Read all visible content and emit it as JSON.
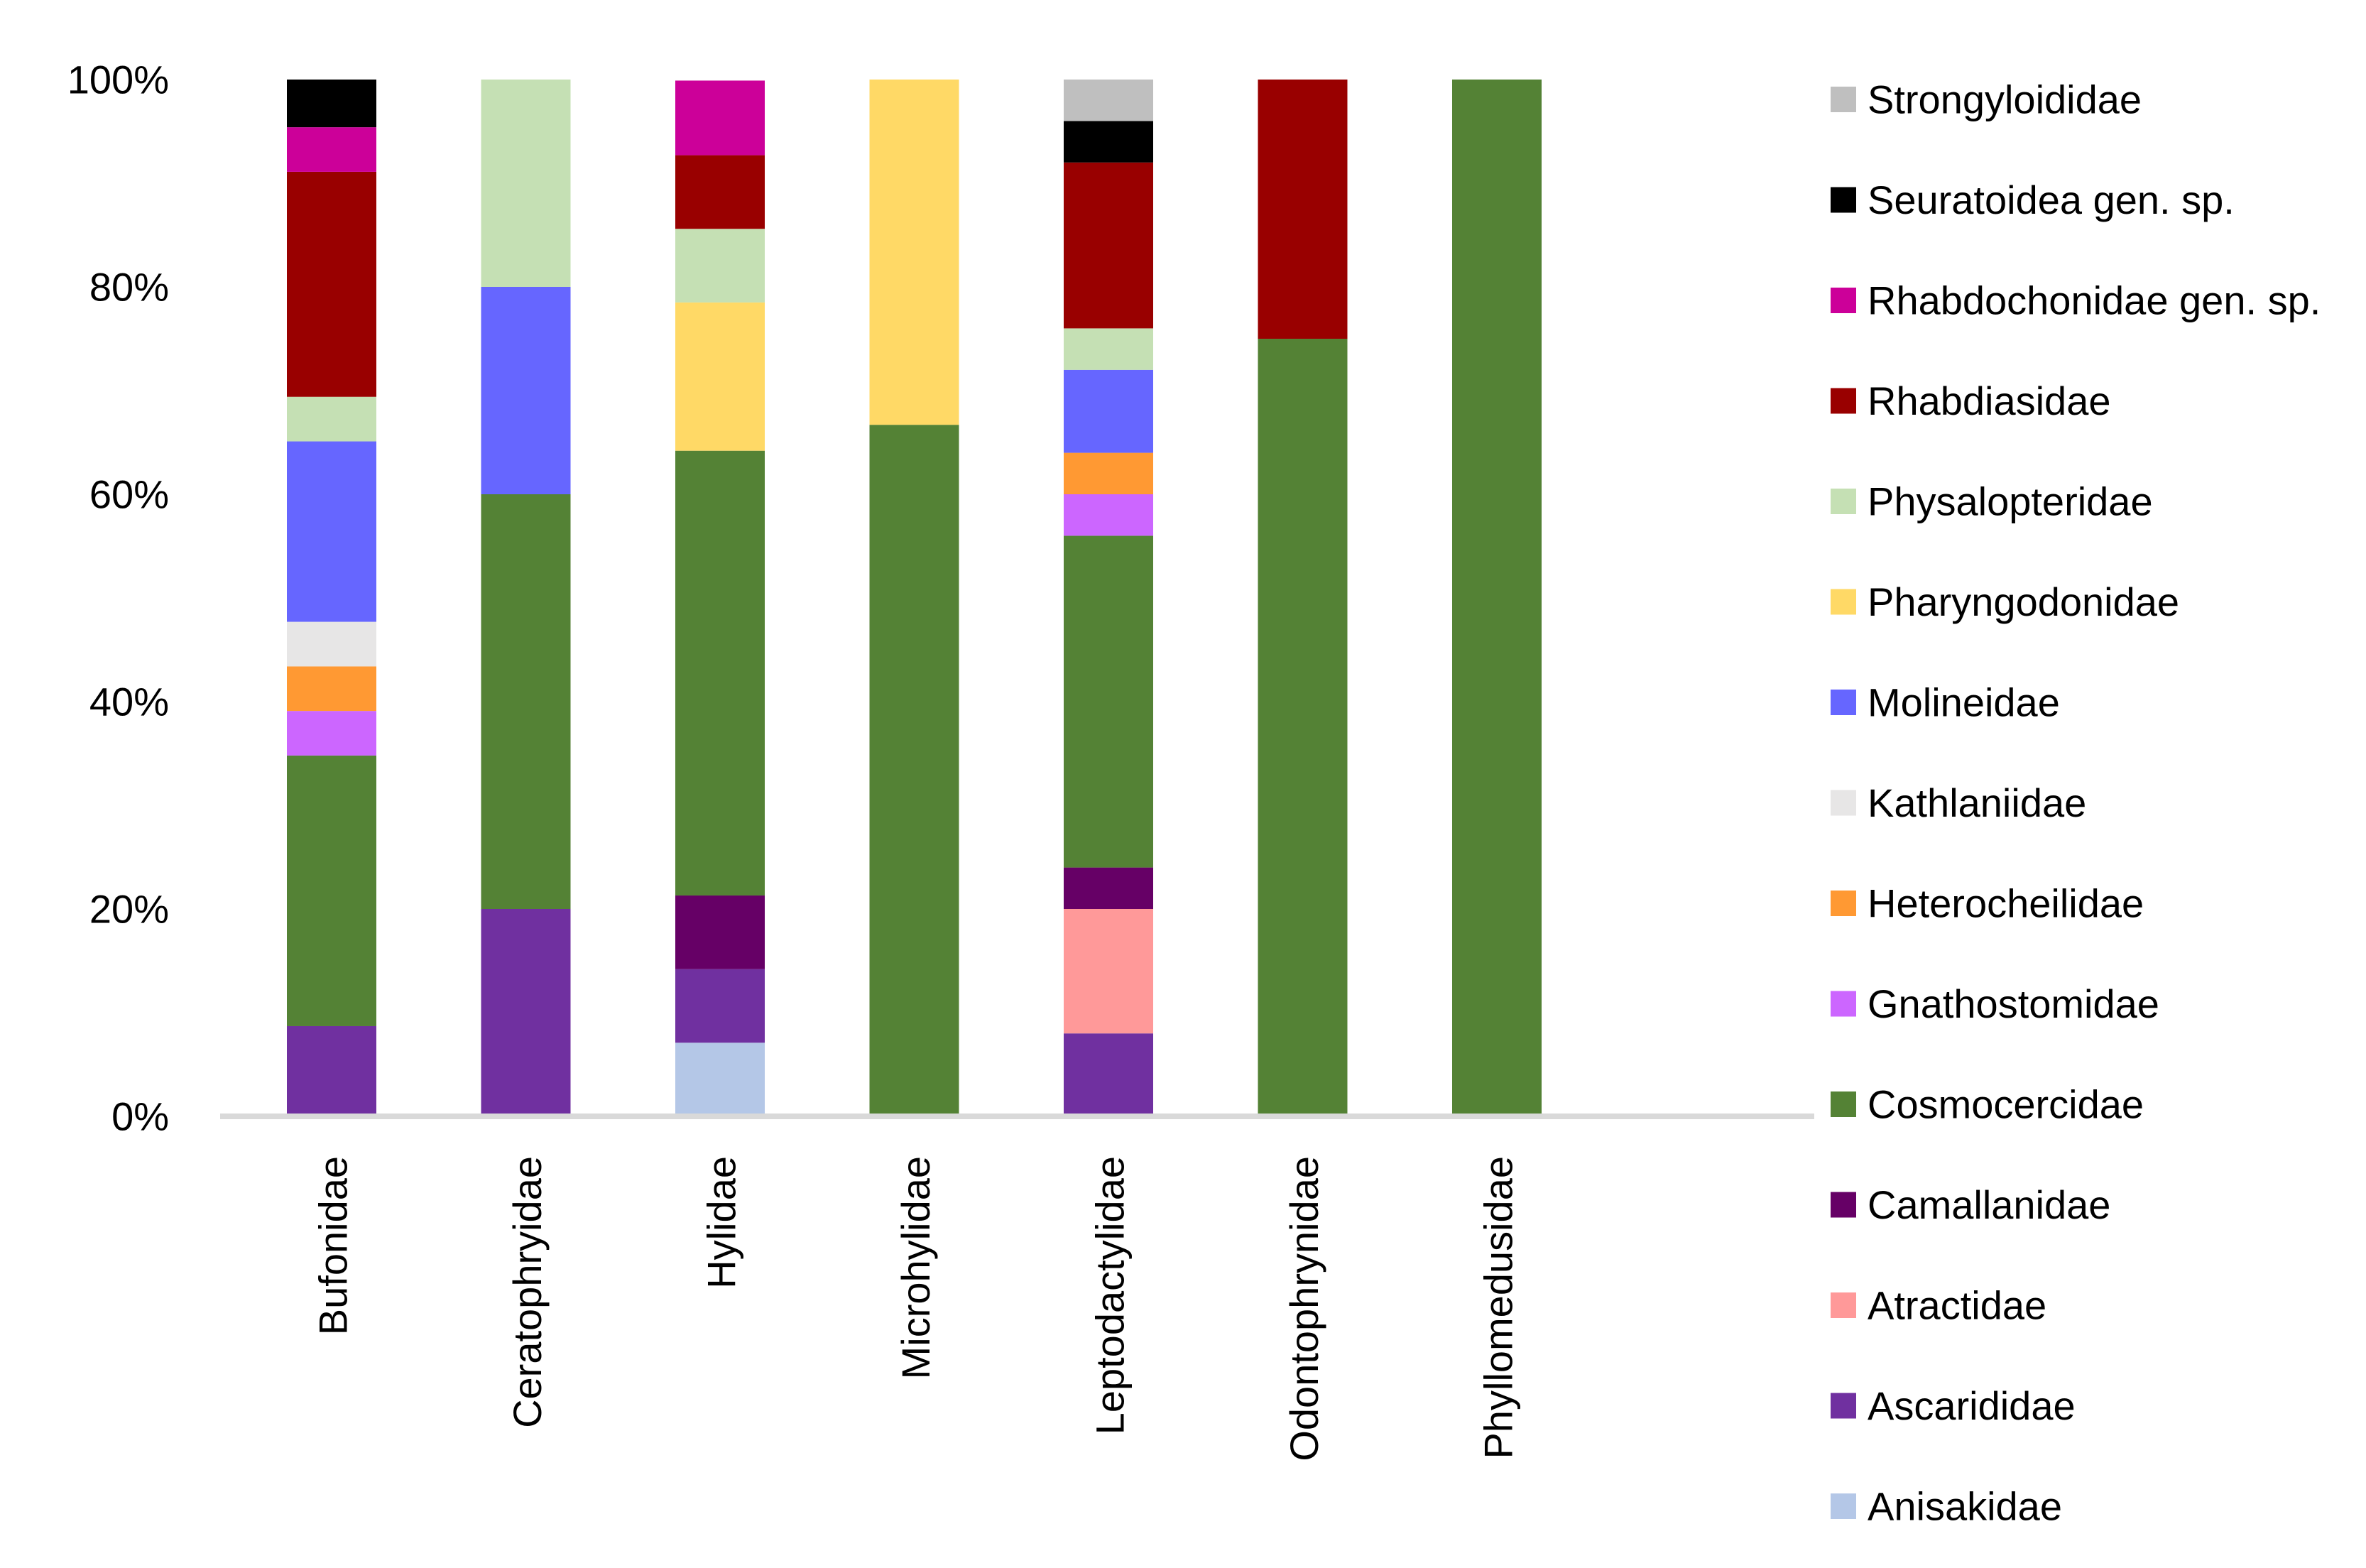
{
  "chart_data": {
    "type": "bar",
    "stacked": true,
    "normalized": true,
    "title": "",
    "xlabel": "",
    "ylabel": "",
    "ylim": [
      0,
      100
    ],
    "yticks": [
      "0%",
      "20%",
      "40%",
      "60%",
      "80%",
      "100%"
    ],
    "grid": false,
    "legend_position": "right",
    "categories": [
      "Bufonidae",
      "Ceratophryidae",
      "Hylidae",
      "Microhylidae",
      "Leptodactylidae",
      "Odontophrynidae",
      "Phyllomedusidae"
    ],
    "series": [
      {
        "name": "Anisakidae",
        "color": "#b4c7e7",
        "values": [
          0,
          0,
          7.1,
          0,
          0,
          0,
          0
        ]
      },
      {
        "name": "Ascarididae",
        "color": "#7030a0",
        "values": [
          8.7,
          20,
          7.1,
          0,
          8,
          0,
          0
        ]
      },
      {
        "name": "Atractidae",
        "color": "#ff9999",
        "values": [
          0,
          0,
          0,
          0,
          12,
          0,
          0
        ]
      },
      {
        "name": "Camallanidae",
        "color": "#660066",
        "values": [
          0,
          0,
          7.1,
          0,
          4,
          0,
          0
        ]
      },
      {
        "name": "Cosmocercidae",
        "color": "#548235",
        "values": [
          26.1,
          40,
          42.9,
          66.7,
          32,
          75,
          100
        ]
      },
      {
        "name": "Gnathostomidae",
        "color": "#cc66ff",
        "values": [
          4.3,
          0,
          0,
          0,
          4,
          0,
          0
        ]
      },
      {
        "name": "Heterocheilidae",
        "color": "#ff9933",
        "values": [
          4.3,
          0,
          0,
          0,
          4,
          0,
          0
        ]
      },
      {
        "name": "Kathlaniidae",
        "color": "#e7e6e6",
        "values": [
          4.3,
          0,
          0,
          0,
          0,
          0,
          0
        ]
      },
      {
        "name": "Molineidae",
        "color": "#6666ff",
        "values": [
          17.4,
          20,
          0,
          0,
          8,
          0,
          0
        ]
      },
      {
        "name": "Pharyngodonidae",
        "color": "#ffd966",
        "values": [
          0,
          0,
          14.3,
          33.3,
          0,
          0,
          0
        ]
      },
      {
        "name": "Physalopteridae",
        "color": "#c5e0b4",
        "values": [
          4.3,
          20,
          7.1,
          0,
          4,
          0,
          0
        ]
      },
      {
        "name": "Rhabdiasidae",
        "color": "#990000",
        "values": [
          21.7,
          0,
          7.1,
          0,
          16,
          25,
          0
        ]
      },
      {
        "name": "Rhabdochonidae gen. sp.",
        "color": "#cc0099",
        "values": [
          4.3,
          0,
          7.2,
          0,
          0,
          0,
          0
        ]
      },
      {
        "name": "Seuratoidea gen. sp.",
        "color": "#000000",
        "values": [
          4.6,
          0,
          0,
          0,
          4,
          0,
          0
        ]
      },
      {
        "name": "Strongyloididae",
        "color": "#bfbfbf",
        "values": [
          0,
          0,
          0,
          0,
          4,
          0,
          0
        ]
      }
    ]
  }
}
